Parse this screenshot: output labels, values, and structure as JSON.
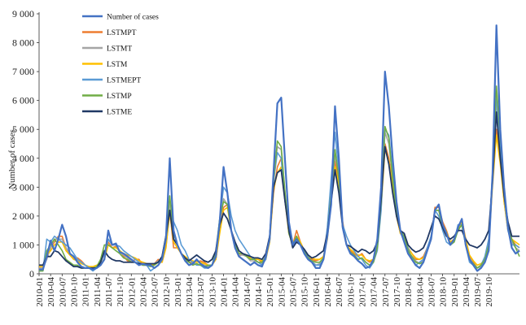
{
  "chart_data": {
    "type": "line",
    "title": "",
    "xlabel": "",
    "ylabel": "Number of cases",
    "ylim": [
      0,
      9000
    ],
    "yticks": [
      0,
      1000,
      2000,
      3000,
      4000,
      5000,
      6000,
      7000,
      8000,
      9000
    ],
    "ytick_labels": [
      "0",
      "1 000",
      "2 000",
      "3 000",
      "4 000",
      "5 000",
      "6 000",
      "7 000",
      "8 000",
      "9 000"
    ],
    "grid": false,
    "legend_position": "top-left",
    "x_start": "2010-01",
    "x_end": "2019-12",
    "xtick_labels": [
      "2010-01",
      "2010-04",
      "2010-07",
      "2010-10",
      "2011-01",
      "2011-04",
      "2011-07",
      "2011-10",
      "2012-01",
      "2012-04",
      "2012-07",
      "2012-10",
      "2013-01",
      "2013-04",
      "2013-07",
      "2013-10",
      "2014-01",
      "2014-04",
      "2014-07",
      "2014-10",
      "2015-01",
      "2015-04",
      "2015-07",
      "2015-10",
      "2016-01",
      "2016-04",
      "2016-07",
      "2016-10",
      "2017-01",
      "2017-04",
      "2017-07",
      "2017-10",
      "2018-01",
      "2018-04",
      "2018-07",
      "2018-10",
      "2019-01",
      "2019-04",
      "2019-07",
      "2019-10"
    ],
    "series": [
      {
        "name": "Number of cases",
        "color": "#4472C4",
        "width": 2.2,
        "values": [
          150,
          150,
          600,
          1150,
          800,
          1200,
          1700,
          1300,
          700,
          600,
          400,
          250,
          200,
          200,
          150,
          200,
          300,
          500,
          1500,
          1000,
          1050,
          750,
          700,
          600,
          500,
          400,
          300,
          350,
          300,
          300,
          200,
          300,
          500,
          1200,
          4000,
          1500,
          1000,
          700,
          450,
          300,
          350,
          500,
          350,
          250,
          200,
          300,
          600,
          1800,
          3700,
          2800,
          1500,
          900,
          600,
          500,
          400,
          300,
          400,
          300,
          250,
          600,
          1200,
          3500,
          5900,
          6100,
          3900,
          1800,
          1000,
          1200,
          1000,
          700,
          500,
          400,
          200,
          200,
          500,
          1300,
          2400,
          5800,
          4000,
          1600,
          1000,
          700,
          600,
          450,
          350,
          200,
          250,
          500,
          1200,
          3000,
          7000,
          5800,
          4000,
          2500,
          1500,
          1100,
          700,
          500,
          300,
          200,
          400,
          800,
          1200,
          2200,
          2400,
          1700,
          1400,
          1000,
          1200,
          1600,
          1900,
          1000,
          500,
          300,
          100,
          200,
          400,
          800,
          3500,
          8600,
          5000,
          3000,
          1600,
          900,
          700,
          800
        ]
      },
      {
        "name": "LSTMPT",
        "color": "#ED7D31",
        "width": 1.6,
        "values": [
          200,
          200,
          700,
          900,
          1100,
          1300,
          1300,
          900,
          650,
          550,
          550,
          450,
          300,
          200,
          200,
          200,
          300,
          500,
          1100,
          900,
          950,
          800,
          600,
          450,
          400,
          500,
          500,
          300,
          300,
          300,
          350,
          500,
          400,
          900,
          2200,
          900,
          900,
          700,
          500,
          400,
          400,
          400,
          450,
          400,
          300,
          300,
          500,
          1500,
          2300,
          2400,
          1500,
          900,
          600,
          700,
          600,
          500,
          500,
          500,
          400,
          500,
          1200,
          2800,
          3700,
          4000,
          2600,
          1400,
          1000,
          1500,
          1100,
          800,
          600,
          500,
          450,
          500,
          600,
          1300,
          2600,
          3900,
          3200,
          1800,
          1000,
          800,
          700,
          600,
          700,
          500,
          400,
          500,
          1000,
          2400,
          4500,
          4000,
          3100,
          2000,
          1400,
          1300,
          900,
          700,
          500,
          500,
          600,
          900,
          1200,
          2300,
          2300,
          1800,
          1500,
          1100,
          1200,
          1500,
          1900,
          1200,
          600,
          400,
          200,
          300,
          500,
          1000,
          3200,
          5000,
          4000,
          2500,
          1500,
          1200,
          1000,
          900
        ]
      },
      {
        "name": "LSTMT",
        "color": "#A5A5A5",
        "width": 1.6,
        "values": [
          200,
          200,
          500,
          900,
          1200,
          1200,
          1200,
          900,
          700,
          500,
          500,
          400,
          300,
          250,
          200,
          250,
          300,
          550,
          1200,
          1000,
          1000,
          750,
          650,
          550,
          450,
          400,
          350,
          300,
          300,
          300,
          350,
          450,
          450,
          1100,
          2500,
          1200,
          1000,
          700,
          500,
          400,
          350,
          450,
          400,
          300,
          250,
          300,
          550,
          1700,
          2600,
          2400,
          1500,
          900,
          650,
          650,
          600,
          450,
          450,
          400,
          350,
          550,
          1250,
          3300,
          4400,
          4300,
          2800,
          1400,
          1000,
          1300,
          1000,
          750,
          550,
          450,
          300,
          350,
          550,
          1300,
          2800,
          4100,
          3400,
          1700,
          1000,
          750,
          650,
          500,
          550,
          400,
          300,
          400,
          900,
          2600,
          4900,
          4500,
          3300,
          2100,
          1400,
          1200,
          800,
          600,
          450,
          350,
          450,
          850,
          1300,
          2200,
          2200,
          1700,
          1450,
          1050,
          1200,
          1500,
          1800,
          1100,
          550,
          350,
          200,
          250,
          450,
          900,
          3400,
          6000,
          4500,
          2800,
          1600,
          1100,
          900,
          800
        ]
      },
      {
        "name": "LSTM",
        "color": "#FFC000",
        "width": 1.6,
        "values": [
          250,
          250,
          650,
          800,
          1000,
          1100,
          1100,
          800,
          650,
          500,
          450,
          350,
          300,
          250,
          250,
          300,
          350,
          500,
          1000,
          900,
          900,
          800,
          700,
          650,
          600,
          550,
          450,
          400,
          350,
          300,
          300,
          400,
          400,
          900,
          2100,
          1100,
          900,
          700,
          600,
          500,
          450,
          400,
          400,
          350,
          300,
          300,
          500,
          1400,
          2200,
          2300,
          1500,
          1000,
          700,
          700,
          650,
          550,
          500,
          500,
          450,
          500,
          1100,
          2900,
          3500,
          3700,
          2500,
          1400,
          1000,
          1300,
          1100,
          800,
          600,
          550,
          500,
          500,
          600,
          1200,
          2500,
          3700,
          3100,
          1700,
          1000,
          850,
          750,
          650,
          650,
          500,
          450,
          500,
          900,
          2300,
          4300,
          3900,
          3000,
          2000,
          1400,
          1300,
          900,
          700,
          550,
          500,
          550,
          850,
          1200,
          2200,
          2200,
          1700,
          1450,
          1100,
          1200,
          1500,
          1800,
          1200,
          650,
          450,
          300,
          350,
          500,
          1000,
          3100,
          4800,
          3800,
          2500,
          1500,
          1200,
          1100,
          1000
        ]
      },
      {
        "name": "LSTMEPT",
        "color": "#5B9BD5",
        "width": 1.6,
        "values": [
          100,
          100,
          1200,
          1100,
          1300,
          1200,
          1100,
          1000,
          900,
          700,
          500,
          400,
          300,
          200,
          100,
          200,
          400,
          700,
          1200,
          1000,
          1000,
          950,
          800,
          700,
          600,
          500,
          400,
          300,
          300,
          100,
          200,
          300,
          500,
          1200,
          2200,
          1800,
          1500,
          1000,
          800,
          500,
          400,
          300,
          300,
          200,
          200,
          300,
          800,
          1900,
          3000,
          2800,
          2000,
          1500,
          1200,
          1000,
          800,
          600,
          500,
          400,
          300,
          500,
          1300,
          3200,
          4200,
          4000,
          2500,
          1700,
          1100,
          1100,
          1000,
          800,
          600,
          400,
          300,
          300,
          500,
          1600,
          3300,
          4900,
          3500,
          1700,
          1300,
          1000,
          800,
          600,
          500,
          300,
          200,
          400,
          800,
          2200,
          5000,
          4800,
          3500,
          2300,
          1500,
          1200,
          900,
          500,
          300,
          400,
          500,
          900,
          1300,
          2200,
          2000,
          1500,
          1100,
          1000,
          1100,
          1700,
          1700,
          1000,
          400,
          300,
          200,
          300,
          600,
          1200,
          3500,
          6200,
          4500,
          2700,
          1500,
          1000,
          1000,
          900
        ]
      },
      {
        "name": "LSTMP",
        "color": "#70AD47",
        "width": 1.6,
        "values": [
          100,
          100,
          800,
          1000,
          1200,
          1000,
          800,
          500,
          400,
          300,
          300,
          200,
          200,
          200,
          200,
          250,
          500,
          1000,
          1000,
          900,
          800,
          700,
          550,
          500,
          400,
          400,
          350,
          300,
          300,
          250,
          300,
          400,
          600,
          1300,
          2700,
          1400,
          1000,
          700,
          500,
          400,
          300,
          350,
          300,
          250,
          300,
          300,
          700,
          1900,
          2500,
          2400,
          1500,
          1000,
          700,
          700,
          600,
          500,
          500,
          400,
          400,
          600,
          1300,
          3200,
          4600,
          4400,
          2800,
          1400,
          1000,
          1300,
          1000,
          750,
          550,
          450,
          400,
          400,
          550,
          1300,
          2700,
          4300,
          3300,
          1600,
          1000,
          750,
          650,
          500,
          550,
          400,
          300,
          400,
          900,
          2500,
          5100,
          4700,
          3300,
          2100,
          1500,
          1300,
          800,
          600,
          400,
          350,
          400,
          800,
          1200,
          2200,
          2200,
          1600,
          1400,
          1000,
          1100,
          1500,
          1700,
          1000,
          500,
          350,
          200,
          300,
          500,
          1000,
          3500,
          6500,
          4800,
          2900,
          1600,
          1200,
          900,
          600
        ]
      },
      {
        "name": "LSTME",
        "color": "#203864",
        "width": 1.8,
        "values": [
          300,
          300,
          600,
          600,
          800,
          750,
          600,
          450,
          350,
          250,
          250,
          200,
          200,
          200,
          200,
          200,
          400,
          800,
          600,
          500,
          450,
          450,
          400,
          400,
          400,
          400,
          350,
          350,
          350,
          350,
          350,
          400,
          600,
          1300,
          2200,
          1200,
          1000,
          700,
          550,
          450,
          550,
          650,
          550,
          450,
          400,
          500,
          800,
          1700,
          2100,
          1900,
          1500,
          1100,
          800,
          700,
          650,
          600,
          550,
          550,
          500,
          700,
          1300,
          3000,
          3500,
          3600,
          2500,
          1500,
          900,
          1100,
          1000,
          850,
          650,
          550,
          600,
          700,
          800,
          1400,
          2500,
          3600,
          2800,
          1600,
          1000,
          950,
          850,
          750,
          850,
          800,
          700,
          800,
          1100,
          2600,
          4400,
          3800,
          2800,
          2000,
          1500,
          1400,
          1000,
          850,
          750,
          800,
          900,
          1200,
          1600,
          2000,
          1900,
          1600,
          1300,
          1200,
          1300,
          1500,
          1500,
          1200,
          1000,
          950,
          900,
          1000,
          1200,
          1500,
          3200,
          5600,
          4000,
          2700,
          1800,
          1300,
          1300,
          1300
        ]
      }
    ]
  }
}
